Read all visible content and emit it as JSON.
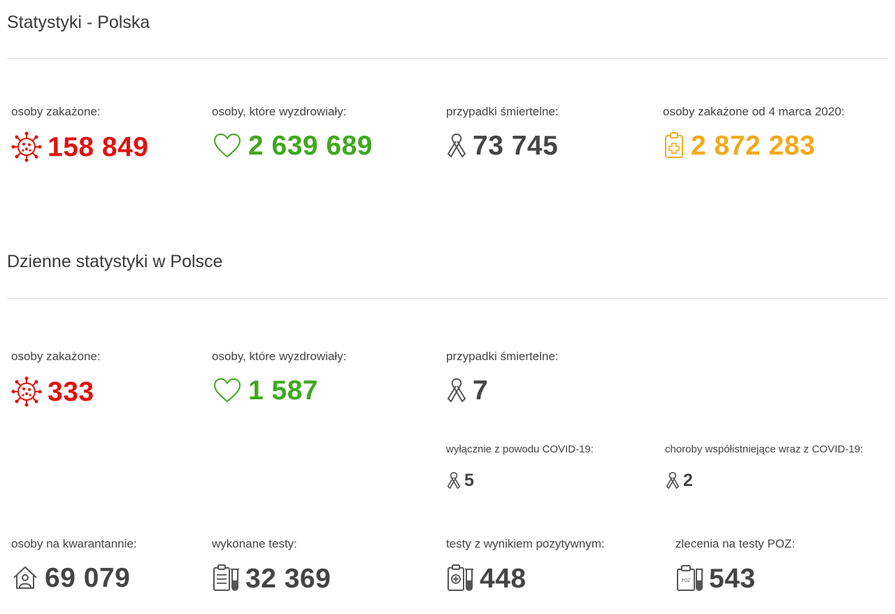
{
  "overall": {
    "title": "Statystyki - Polska",
    "infected": {
      "label": "osoby zakażone:",
      "value": "158 849",
      "icon": "virus-icon",
      "color": "#e0120f"
    },
    "recovered": {
      "label": "osoby, które wyzdrowiały:",
      "value": "2 639 689",
      "icon": "heart-icon",
      "color": "#3fa81e"
    },
    "deaths": {
      "label": "przypadki śmiertelne:",
      "value": "73 745",
      "icon": "ribbon-icon",
      "color": "#444444"
    },
    "total": {
      "label": "osoby zakażone od 4 marca 2020:",
      "value": "2 872 283",
      "icon": "clipboard-medical-icon",
      "color": "#f5a81c"
    }
  },
  "daily": {
    "title": "Dzienne statystyki w Polsce",
    "infected": {
      "label": "osoby zakażone:",
      "value": "333",
      "icon": "virus-icon"
    },
    "recovered": {
      "label": "osoby, które wyzdrowiały:",
      "value": "1 587",
      "icon": "heart-icon"
    },
    "deaths": {
      "label": "przypadki śmiertelne:",
      "value": "7",
      "icon": "ribbon-icon"
    },
    "covid_only": {
      "label": "wyłącznie z powodu COVID-19:",
      "value": "5",
      "icon": "ribbon-icon"
    },
    "comorbid": {
      "label": "choroby współistniejące wraz z COVID-19:",
      "value": "2",
      "icon": "ribbon-icon"
    },
    "quarantine": {
      "label": "osoby na kwarantannie:",
      "value": "69 079",
      "icon": "house-person-icon"
    },
    "tests": {
      "label": "wykonane testy:",
      "value": "32 369",
      "icon": "clipboard-test-tube-icon"
    },
    "positive_tests": {
      "label": "testy z wynikiem pozytywnym:",
      "value": "448",
      "icon": "positive-test-icon"
    },
    "poz_orders": {
      "label": "zlecenia na testy POZ:",
      "value": "543",
      "icon": "poz-test-icon"
    }
  }
}
